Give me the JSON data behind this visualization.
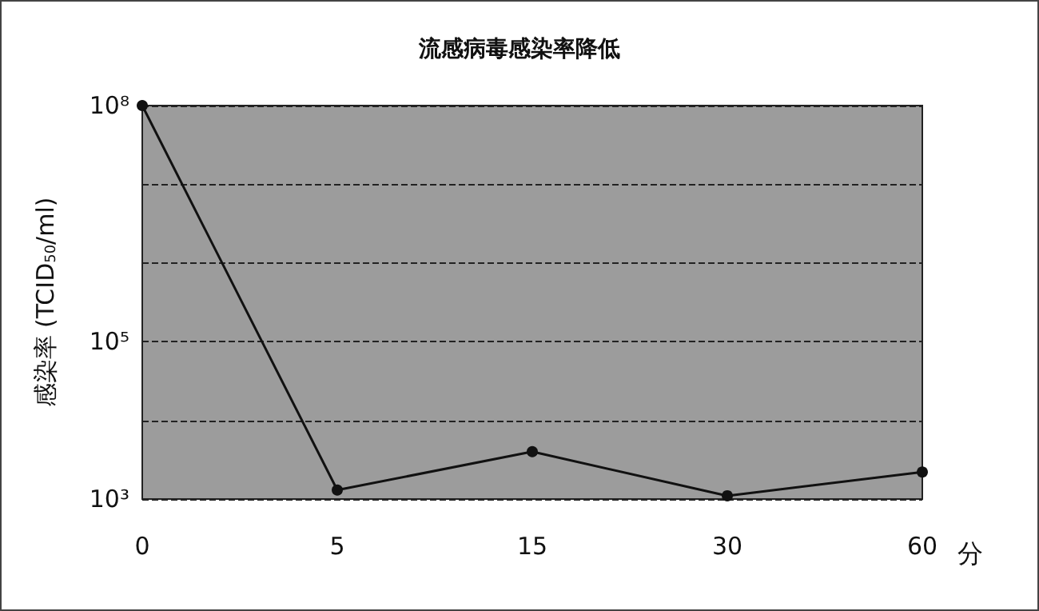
{
  "chart_data": {
    "type": "line",
    "title": "流感病毒感染率降低",
    "xlabel": "分",
    "ylabel": "感染率 (TCID$_{50}$/ml)",
    "categories": [
      "0",
      "5",
      "15",
      "30",
      "60"
    ],
    "series": [
      {
        "color": "#111111",
        "values": [
          100000000,
          1300,
          4000,
          1100,
          2200
        ]
      }
    ],
    "log": "y",
    "ylim": [
      1000,
      100000000
    ],
    "yticks": [
      {
        "value": 1000,
        "label": "10³"
      },
      {
        "value": 10000,
        "label": null
      },
      {
        "value": 100000,
        "label": "10⁵"
      },
      {
        "value": 1000000,
        "label": null
      },
      {
        "value": 10000000,
        "label": null
      },
      {
        "value": 100000000,
        "label": "10⁸"
      }
    ],
    "grid": "y",
    "marker": "circle",
    "line_style": "solid"
  }
}
